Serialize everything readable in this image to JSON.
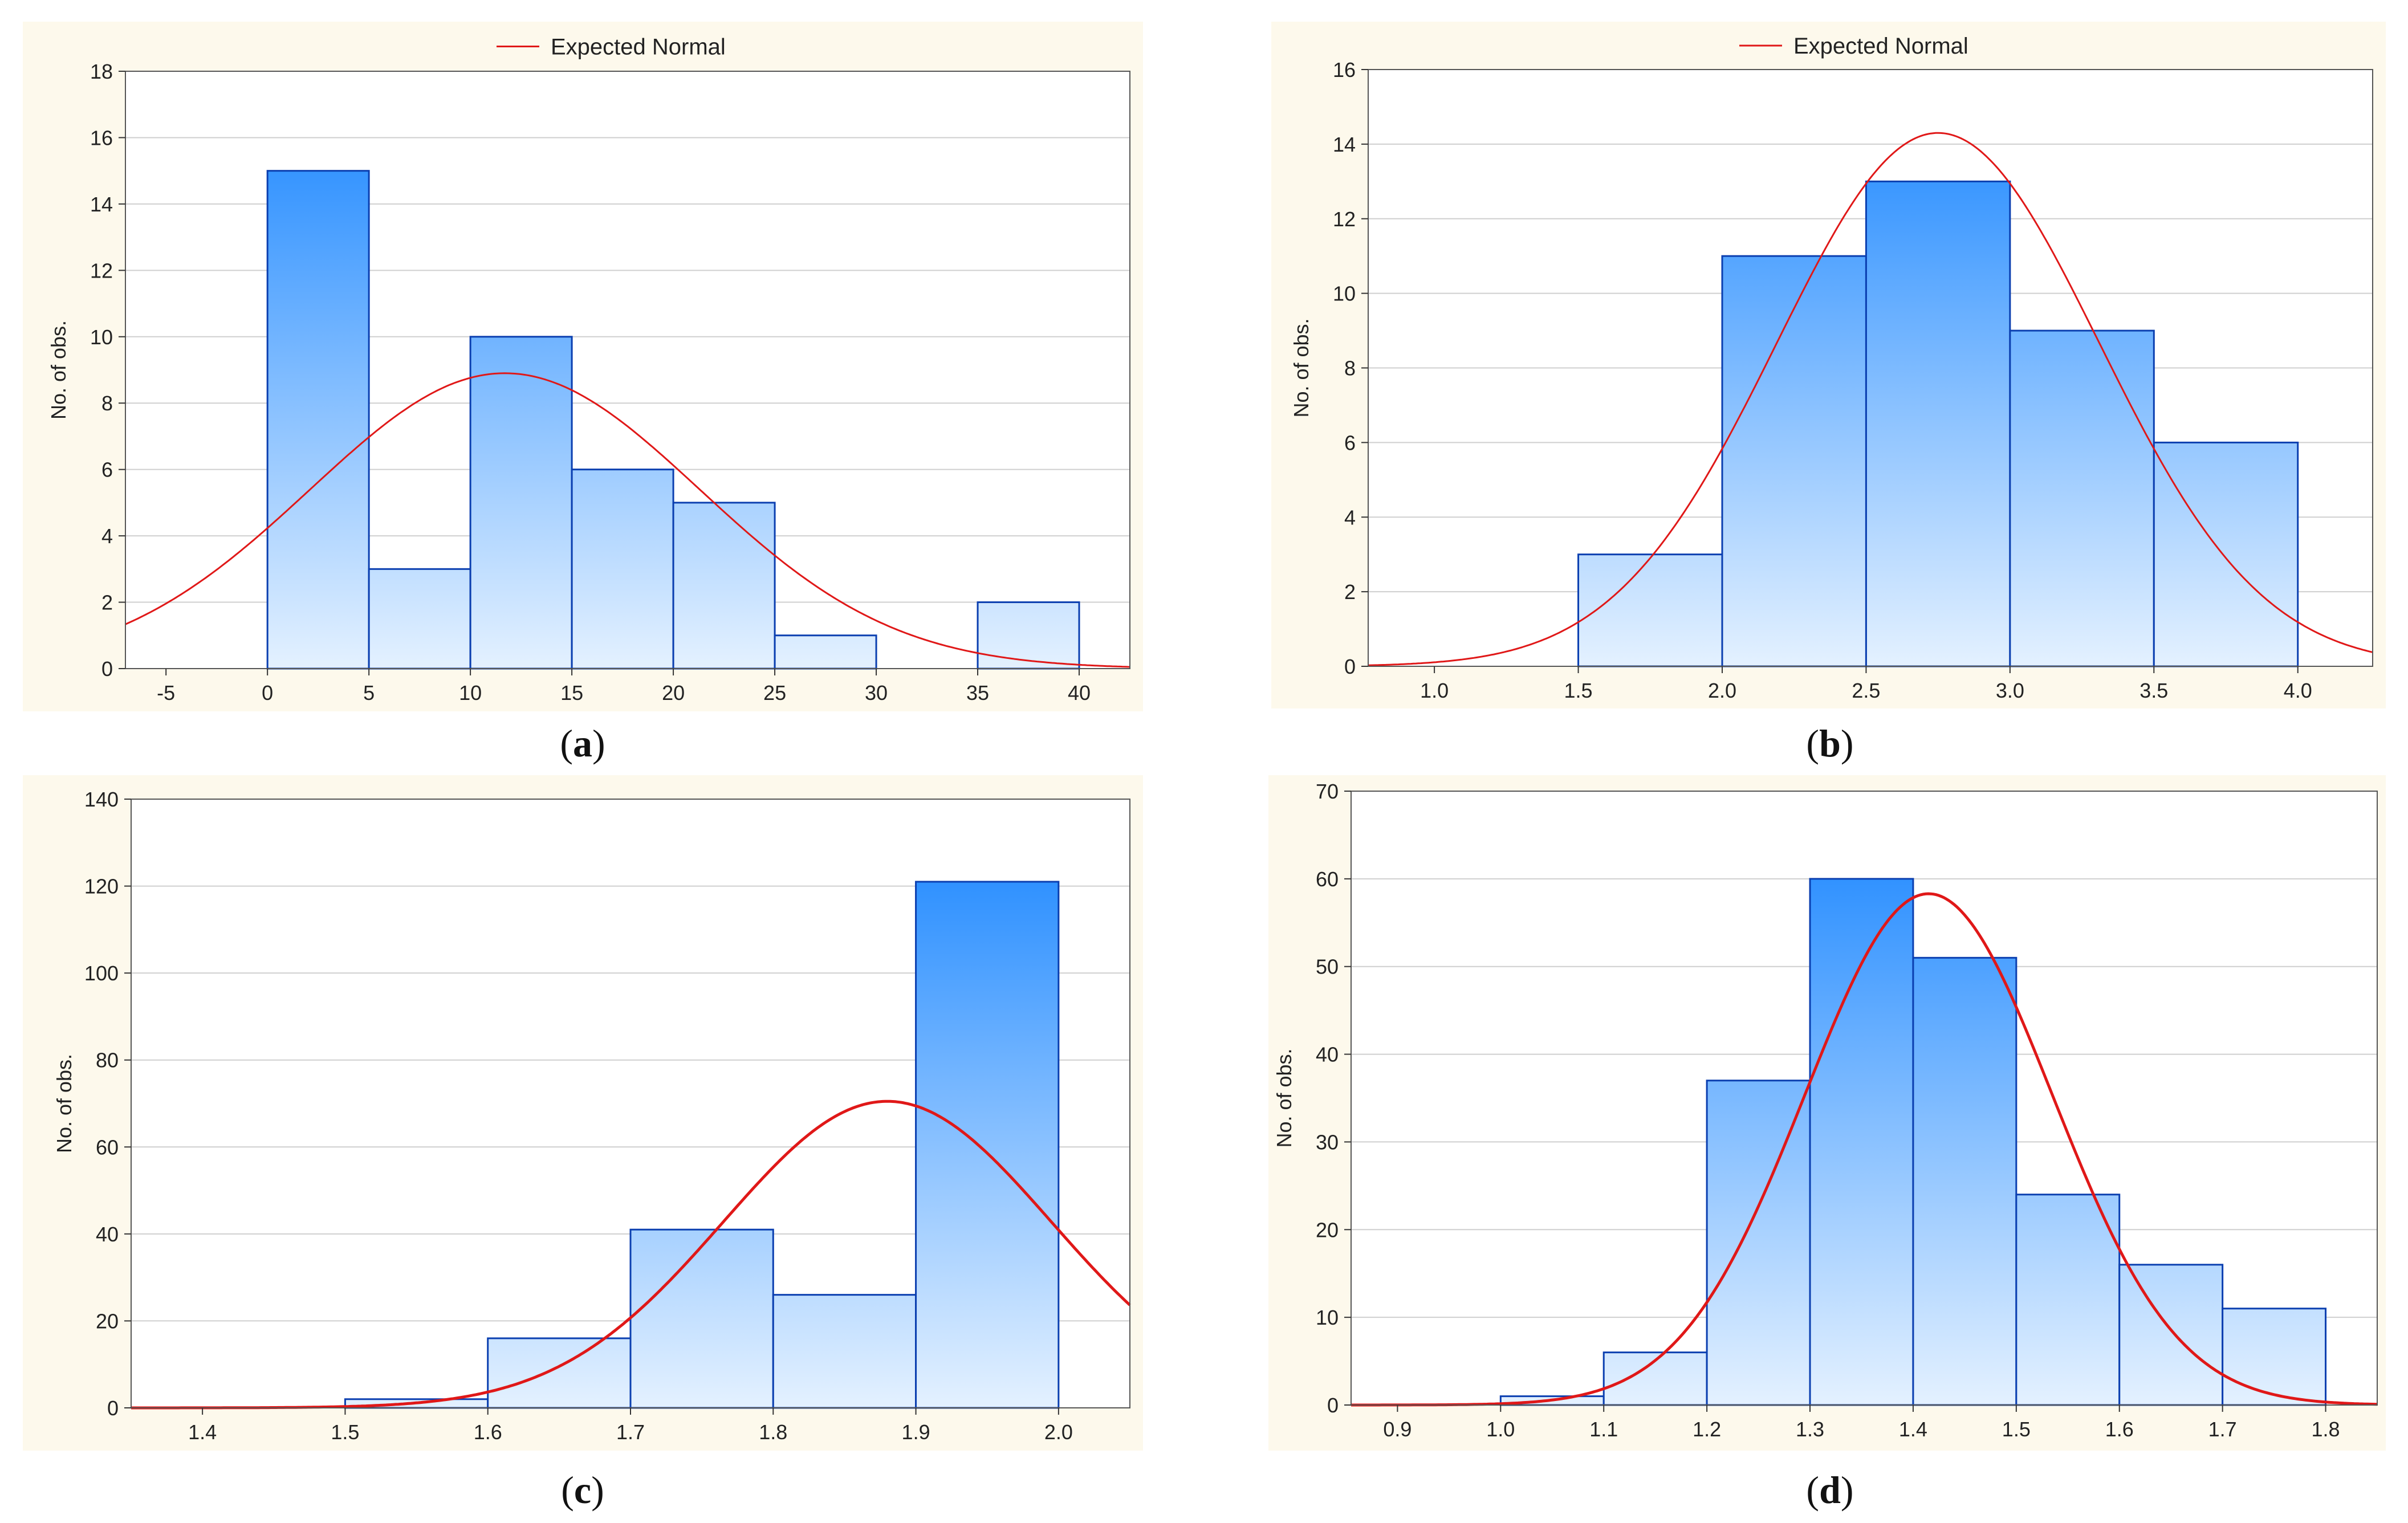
{
  "colors": {
    "bar_top": "#1e88ff",
    "bar_bottom": "#e4f1ff",
    "bar_stroke": "#0b3fb0",
    "curve": "#e01818",
    "panel_bg": "#fdf9ec",
    "grid": "#cfcfcf"
  },
  "chart_data": [
    {
      "id": "a",
      "caption": "a",
      "type": "bar",
      "title": "",
      "legend": "Expected Normal",
      "ylabel": "No. of obs.",
      "xlabel": "",
      "xlim": [
        -7,
        42.5
      ],
      "ylim": [
        0,
        18
      ],
      "xticks": [
        -5,
        0,
        5,
        10,
        15,
        20,
        25,
        30,
        35,
        40
      ],
      "xtick_labels": [
        "-5",
        "0",
        "5",
        "10",
        "15",
        "20",
        "25",
        "30",
        "35",
        "40"
      ],
      "yticks": [
        0,
        2,
        4,
        6,
        8,
        10,
        12,
        14,
        16,
        18
      ],
      "bins": [
        [
          0,
          5,
          15
        ],
        [
          5,
          10,
          3
        ],
        [
          10,
          15,
          10
        ],
        [
          15,
          20,
          6
        ],
        [
          20,
          25,
          5
        ],
        [
          25,
          30,
          1
        ],
        [
          35,
          40,
          2
        ]
      ],
      "normal": {
        "mean": 11.7,
        "peak": 8.9,
        "sd": 9.6
      },
      "curve_width": 3
    },
    {
      "id": "b",
      "caption": "b",
      "type": "bar",
      "title": "",
      "legend": "Expected Normal",
      "ylabel": "No. of obs.",
      "xlabel": "",
      "xlim": [
        0.77,
        4.26
      ],
      "ylim": [
        0,
        16
      ],
      "xticks": [
        1.0,
        1.5,
        2.0,
        2.5,
        3.0,
        3.5,
        4.0
      ],
      "xtick_labels": [
        "1.0",
        "1.5",
        "2.0",
        "2.5",
        "3.0",
        "3.5",
        "4.0"
      ],
      "yticks": [
        0,
        2,
        4,
        6,
        8,
        10,
        12,
        14,
        16
      ],
      "bins": [
        [
          1.5,
          2.0,
          3
        ],
        [
          2.0,
          2.5,
          11
        ],
        [
          2.5,
          3.0,
          13
        ],
        [
          3.0,
          3.5,
          9
        ],
        [
          3.5,
          4.0,
          6
        ]
      ],
      "normal": {
        "mean": 2.75,
        "peak": 14.3,
        "sd": 0.56
      },
      "curve_width": 3
    },
    {
      "id": "c",
      "caption": "c",
      "type": "bar",
      "title": "",
      "legend": "",
      "ylabel": "No. of obs.",
      "xlabel": "",
      "xlim": [
        1.35,
        2.05
      ],
      "ylim": [
        0,
        140
      ],
      "xticks": [
        1.4,
        1.5,
        1.6,
        1.7,
        1.8,
        1.9,
        2.0
      ],
      "xtick_labels": [
        "1.4",
        "1.5",
        "1.6",
        "1.7",
        "1.8",
        "1.9",
        "2.0"
      ],
      "yticks": [
        0,
        20,
        40,
        60,
        80,
        100,
        120,
        140
      ],
      "bins": [
        [
          1.5,
          1.6,
          2
        ],
        [
          1.6,
          1.7,
          16
        ],
        [
          1.7,
          1.8,
          41
        ],
        [
          1.8,
          1.9,
          26
        ],
        [
          1.9,
          2.0,
          121
        ]
      ],
      "normal": {
        "mean": 1.88,
        "peak": 70.5,
        "sd": 0.115
      },
      "curve_width": 5
    },
    {
      "id": "d",
      "caption": "d",
      "type": "bar",
      "title": "",
      "legend": "",
      "ylabel": "No. of obs.",
      "xlabel": "",
      "xlim": [
        0.855,
        1.85
      ],
      "ylim": [
        0,
        70
      ],
      "xticks": [
        0.9,
        1.0,
        1.1,
        1.2,
        1.3,
        1.4,
        1.5,
        1.6,
        1.7,
        1.8
      ],
      "xtick_labels": [
        "0.9",
        "1.0",
        "1.1",
        "1.2",
        "1.3",
        "1.4",
        "1.5",
        "1.6",
        "1.7",
        "1.8"
      ],
      "yticks": [
        0,
        10,
        20,
        30,
        40,
        50,
        60,
        70
      ],
      "bins": [
        [
          1.0,
          1.1,
          1
        ],
        [
          1.1,
          1.2,
          6
        ],
        [
          1.2,
          1.3,
          37
        ],
        [
          1.3,
          1.4,
          60
        ],
        [
          1.4,
          1.5,
          51
        ],
        [
          1.5,
          1.6,
          24
        ],
        [
          1.6,
          1.7,
          16
        ],
        [
          1.7,
          1.8,
          11
        ]
      ],
      "normal": {
        "mean": 1.415,
        "peak": 58.3,
        "sd": 0.12
      },
      "curve_width": 5
    }
  ]
}
